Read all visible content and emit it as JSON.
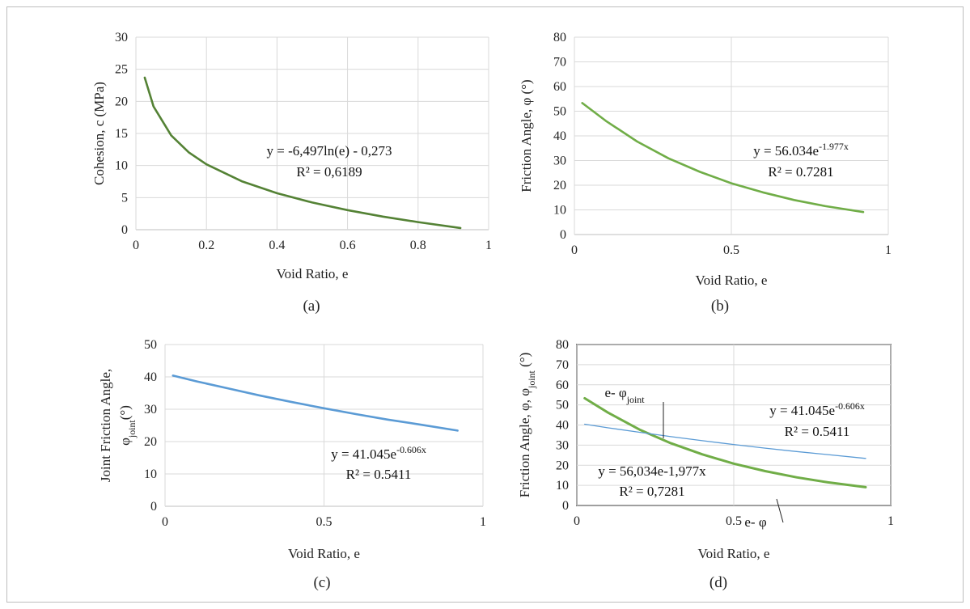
{
  "chart_data": [
    {
      "type": "line",
      "caption": "(a)",
      "xlabel": "Void Ratio, e",
      "ylabel": "Cohesion, c (MPa)",
      "xlim": [
        0,
        1
      ],
      "ylim": [
        0,
        30
      ],
      "xticks": [
        "0",
        "0.2",
        "0.4",
        "0.6",
        "0.8",
        "1"
      ],
      "yticks": [
        "0",
        "5",
        "10",
        "15",
        "20",
        "25",
        "30"
      ],
      "grid": true,
      "annotations": [
        "y = -6,497ln(e) - 0,273",
        "R² = 0,6189"
      ],
      "series": [
        {
          "x": [
            0.025,
            0.05,
            0.1,
            0.15,
            0.2,
            0.3,
            0.4,
            0.5,
            0.6,
            0.7,
            0.8,
            0.92
          ],
          "y": [
            23.7,
            19.2,
            14.7,
            12.05,
            10.18,
            7.55,
            5.68,
            4.23,
            3.05,
            2.04,
            1.18,
            0.27
          ],
          "color": "#548235"
        }
      ]
    },
    {
      "type": "line",
      "caption": "(b)",
      "xlabel": "Void Ratio, e",
      "ylabel": "Friction Angle, φ (°)",
      "xlim": [
        0,
        1
      ],
      "ylim": [
        0,
        80
      ],
      "xticks": [
        "0",
        "0.5",
        "1"
      ],
      "yticks": [
        "0",
        "10",
        "20",
        "30",
        "40",
        "50",
        "60",
        "70",
        "80"
      ],
      "grid": true,
      "annotations": [
        {
          "base": "y = 56.034e",
          "sup": "-1.977x"
        },
        "R² = 0.7281"
      ],
      "series": [
        {
          "x": [
            0.025,
            0.1,
            0.2,
            0.3,
            0.4,
            0.5,
            0.6,
            0.7,
            0.8,
            0.92
          ],
          "y": [
            53.3,
            46.1,
            37.7,
            30.9,
            25.4,
            20.8,
            17.1,
            14.0,
            11.5,
            9.1
          ],
          "color": "#70ad47"
        }
      ]
    },
    {
      "type": "line",
      "caption": "(c)",
      "xlabel": "Void Ratio, e",
      "ylabel": [
        "Joint Friction Angle,",
        {
          "base": "φ",
          "sub": "joint",
          "tail": "(°)"
        }
      ],
      "xlim": [
        0,
        1
      ],
      "ylim": [
        0,
        50
      ],
      "xticks": [
        "0",
        "0.5",
        "1"
      ],
      "yticks": [
        "0",
        "10",
        "20",
        "30",
        "40",
        "50"
      ],
      "grid": true,
      "annotations": [
        {
          "base": "y = 41.045e",
          "sup": "-0.606x"
        },
        "R² = 0.5411"
      ],
      "series": [
        {
          "x": [
            0.025,
            0.1,
            0.2,
            0.3,
            0.4,
            0.5,
            0.6,
            0.7,
            0.8,
            0.92
          ],
          "y": [
            40.4,
            38.6,
            36.4,
            34.2,
            32.2,
            30.3,
            28.5,
            26.8,
            25.3,
            23.4
          ],
          "color": "#5b9bd5"
        }
      ]
    },
    {
      "type": "line",
      "caption": "(d)",
      "xlabel": "Void Ratio, e",
      "ylabel": {
        "base": "Friction Angle, φ, φ",
        "sub": "joint",
        "tail": " (°)"
      },
      "xlim": [
        0,
        1
      ],
      "ylim": [
        0,
        80
      ],
      "xticks": [
        "0",
        "0.5",
        "1"
      ],
      "yticks": [
        "0",
        "10",
        "20",
        "30",
        "40",
        "50",
        "60",
        "70",
        "80"
      ],
      "grid": true,
      "annotations": [
        {
          "base": "y = 41.045e",
          "sup": "-0.606x"
        },
        "R² = 0.5411",
        "y = 56,034e-1,977x",
        "R² = 0,7281",
        {
          "base": "e- φ",
          "sub": "joint"
        },
        "e- φ"
      ],
      "series": [
        {
          "x": [
            0.025,
            0.1,
            0.2,
            0.3,
            0.4,
            0.5,
            0.6,
            0.7,
            0.8,
            0.92
          ],
          "y": [
            53.3,
            46.1,
            37.7,
            30.9,
            25.4,
            20.8,
            17.1,
            14.0,
            11.5,
            9.1
          ],
          "color": "#70ad47"
        },
        {
          "x": [
            0.025,
            0.1,
            0.2,
            0.3,
            0.4,
            0.5,
            0.6,
            0.7,
            0.8,
            0.92
          ],
          "y": [
            40.4,
            38.6,
            36.4,
            34.2,
            32.2,
            30.3,
            28.5,
            26.8,
            25.3,
            23.4
          ],
          "color": "#5b9bd5"
        }
      ]
    }
  ]
}
